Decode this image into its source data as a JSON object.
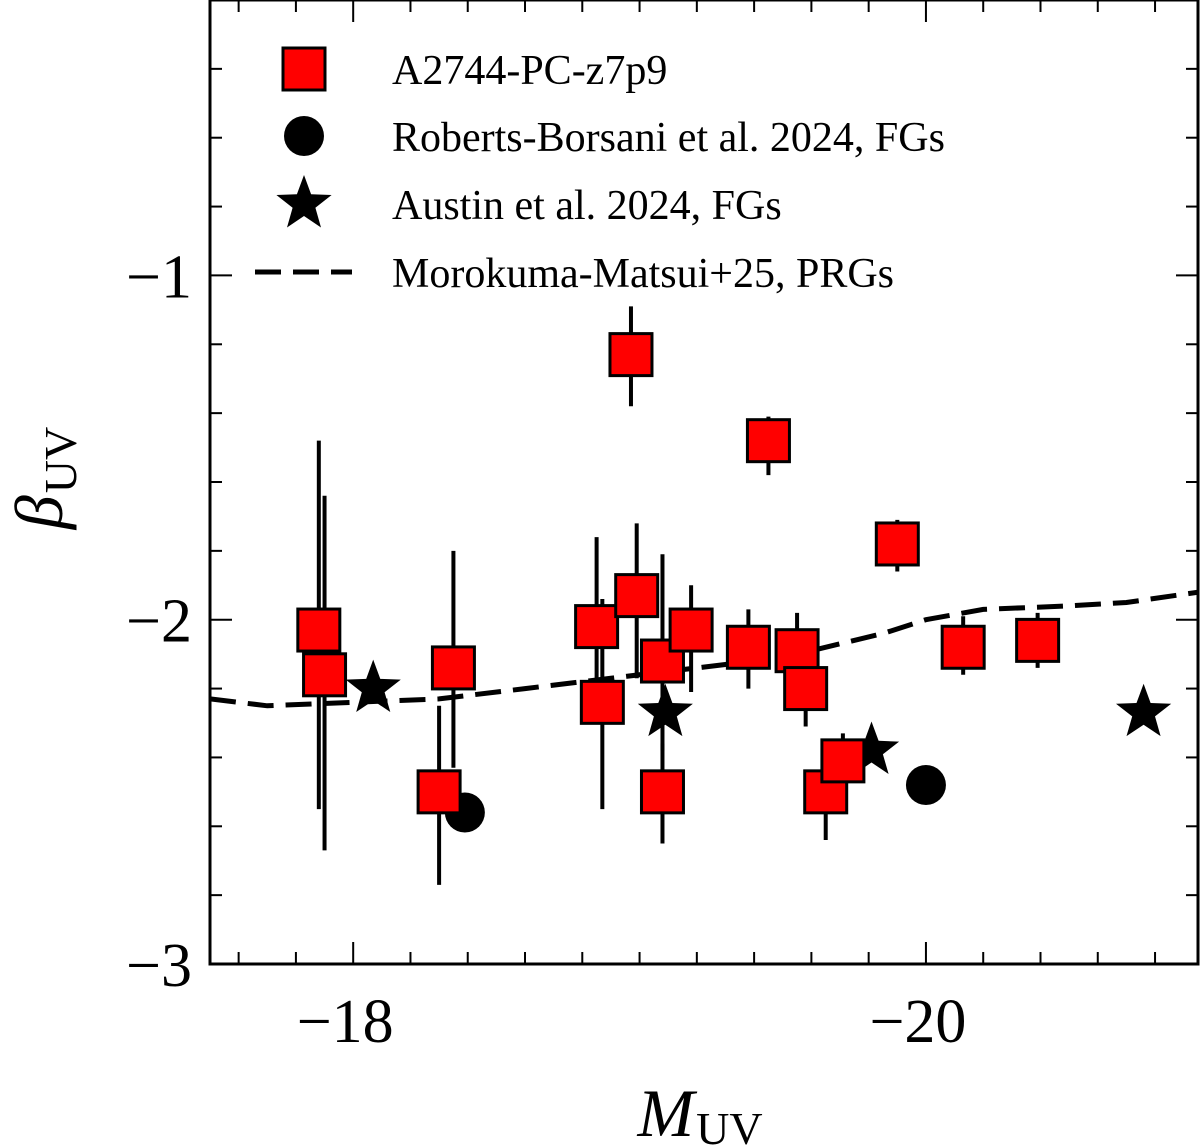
{
  "chart_data": {
    "type": "scatter",
    "xlabel": {
      "main": "M",
      "sub": "UV"
    },
    "ylabel": {
      "main": "β",
      "sub": "UV"
    },
    "xlim": [
      -17.5,
      -20.95
    ],
    "ylim": [
      -3.0,
      -0.2
    ],
    "x_ticks": [
      -18,
      -20
    ],
    "x_tick_labels": [
      "−18",
      "−20"
    ],
    "y_ticks": [
      -3,
      -2,
      -1
    ],
    "y_tick_labels": [
      "−3",
      "−2",
      "−1"
    ],
    "legend_position": "top-left",
    "series": [
      {
        "name": "A2744-PC-z7p9",
        "marker": "square",
        "color": "#ff0000",
        "points": [
          {
            "x": -17.88,
            "y": -2.03,
            "ylo": -2.55,
            "yhi": -1.48
          },
          {
            "x": -17.9,
            "y": -2.16,
            "ylo": -2.67,
            "yhi": -1.64
          },
          {
            "x": -18.3,
            "y": -2.5,
            "ylo": -2.77,
            "yhi": -2.25
          },
          {
            "x": -18.35,
            "y": -2.14,
            "ylo": -2.43,
            "yhi": -1.8
          },
          {
            "x": -18.87,
            "y": -2.24,
            "ylo": -2.55,
            "yhi": -1.94
          },
          {
            "x": -18.85,
            "y": -2.02,
            "ylo": -2.25,
            "yhi": -1.76
          },
          {
            "x": -18.99,
            "y": -1.93,
            "ylo": -2.17,
            "yhi": -1.72
          },
          {
            "x": -18.97,
            "y": -1.23,
            "ylo": -1.38,
            "yhi": -1.09
          },
          {
            "x": -19.08,
            "y": -2.12,
            "ylo": -2.38,
            "yhi": -1.81
          },
          {
            "x": -19.08,
            "y": -2.5,
            "ylo": -2.65,
            "yhi": -2.36
          },
          {
            "x": -19.18,
            "y": -2.03,
            "ylo": -2.21,
            "yhi": -1.9
          },
          {
            "x": -19.38,
            "y": -2.08,
            "ylo": -2.2,
            "yhi": -1.97
          },
          {
            "x": -19.45,
            "y": -1.48,
            "ylo": -1.58,
            "yhi": -1.41
          },
          {
            "x": -19.55,
            "y": -2.09,
            "ylo": -2.2,
            "yhi": -1.98
          },
          {
            "x": -19.58,
            "y": -2.2,
            "ylo": -2.31,
            "yhi": -2.09
          },
          {
            "x": -19.65,
            "y": -2.5,
            "ylo": -2.64,
            "yhi": -2.37
          },
          {
            "x": -19.71,
            "y": -2.41,
            "ylo": -2.48,
            "yhi": -2.33
          },
          {
            "x": -19.9,
            "y": -1.78,
            "ylo": -1.86,
            "yhi": -1.71
          },
          {
            "x": -20.13,
            "y": -2.08,
            "ylo": -2.16,
            "yhi": -1.99
          },
          {
            "x": -20.39,
            "y": -2.06,
            "ylo": -2.14,
            "yhi": -1.98
          }
        ]
      },
      {
        "name": "Roberts-Borsani et al. 2024, FGs",
        "marker": "circle",
        "color": "#000000",
        "points": [
          {
            "x": -18.39,
            "y": -2.56
          },
          {
            "x": -20.0,
            "y": -2.48
          }
        ]
      },
      {
        "name": "Austin et al. 2024, FGs",
        "marker": "star",
        "color": "#000000",
        "points": [
          {
            "x": -18.07,
            "y": -2.2
          },
          {
            "x": -19.09,
            "y": -2.27
          },
          {
            "x": -19.81,
            "y": -2.38
          },
          {
            "x": -20.76,
            "y": -2.27
          }
        ]
      },
      {
        "name": "Morokuma-Matsui+25, PRGs",
        "marker": "dashed-line",
        "color": "#000000",
        "points": [
          {
            "x": -17.5,
            "y": -2.23
          },
          {
            "x": -17.7,
            "y": -2.25
          },
          {
            "x": -18.0,
            "y": -2.24
          },
          {
            "x": -18.3,
            "y": -2.23
          },
          {
            "x": -18.6,
            "y": -2.2
          },
          {
            "x": -18.9,
            "y": -2.17
          },
          {
            "x": -19.2,
            "y": -2.14
          },
          {
            "x": -19.5,
            "y": -2.11
          },
          {
            "x": -19.7,
            "y": -2.07
          },
          {
            "x": -19.85,
            "y": -2.04
          },
          {
            "x": -20.0,
            "y": -2.0
          },
          {
            "x": -20.2,
            "y": -1.97
          },
          {
            "x": -20.5,
            "y": -1.96
          },
          {
            "x": -20.7,
            "y": -1.95
          },
          {
            "x": -20.95,
            "y": -1.92
          }
        ]
      }
    ]
  }
}
